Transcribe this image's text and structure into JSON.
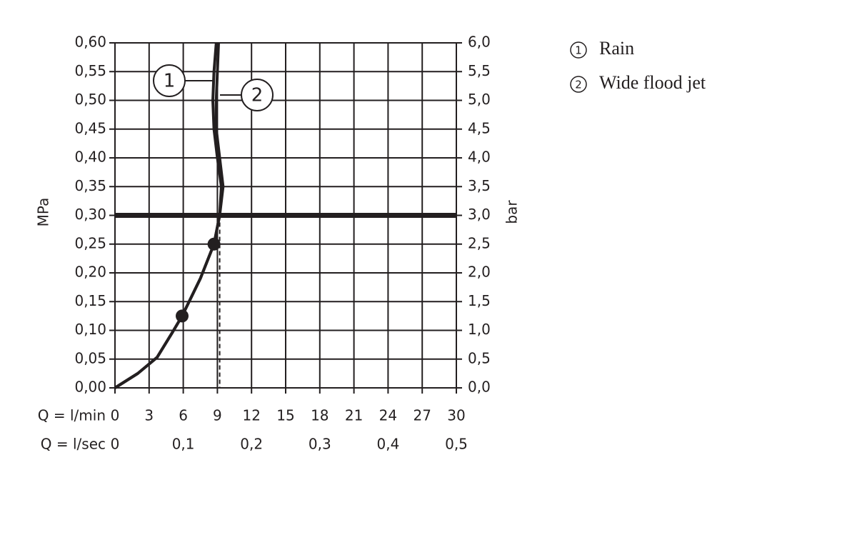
{
  "chart_data": {
    "type": "line",
    "xlabel": "Q = l/min",
    "x2label": "Q = l/sec",
    "ylabel": "MPa",
    "y2label": "bar",
    "xlim": [
      0,
      30
    ],
    "xticks": [
      0,
      3,
      6,
      9,
      12,
      15,
      18,
      21,
      24,
      27,
      30
    ],
    "x2lim": [
      0,
      0.5
    ],
    "x2ticks": [
      0,
      {
        "value": 0.1,
        "label": "0,1"
      },
      {
        "value": 0.2,
        "label": "0,2"
      },
      {
        "value": 0.3,
        "label": "0,3"
      },
      {
        "value": 0.4,
        "label": "0,4"
      },
      {
        "value": 0.5,
        "label": "0,5"
      }
    ],
    "ylim": [
      0,
      0.6
    ],
    "yticks": [
      {
        "value": 0,
        "label": "0,00"
      },
      {
        "value": 0.05,
        "label": "0,05"
      },
      {
        "value": 0.1,
        "label": "0,10"
      },
      {
        "value": 0.15,
        "label": "0,15"
      },
      {
        "value": 0.2,
        "label": "0,20"
      },
      {
        "value": 0.25,
        "label": "0,25"
      },
      {
        "value": 0.3,
        "label": "0,30"
      },
      {
        "value": 0.35,
        "label": "0,35"
      },
      {
        "value": 0.4,
        "label": "0,40"
      },
      {
        "value": 0.45,
        "label": "0,45"
      },
      {
        "value": 0.5,
        "label": "0,50"
      },
      {
        "value": 0.55,
        "label": "0,55"
      },
      {
        "value": 0.6,
        "label": "0,60"
      }
    ],
    "y2lim": [
      0,
      6
    ],
    "y2ticks": [
      {
        "value": 0,
        "label": "0,0"
      },
      {
        "value": 0.5,
        "label": "0,5"
      },
      {
        "value": 1,
        "label": "1,0"
      },
      {
        "value": 1.5,
        "label": "1,5"
      },
      {
        "value": 2,
        "label": "2,0"
      },
      {
        "value": 2.5,
        "label": "2,5"
      },
      {
        "value": 3,
        "label": "3,0"
      },
      {
        "value": 3.5,
        "label": "3,5"
      },
      {
        "value": 4,
        "label": "4,0"
      },
      {
        "value": 4.5,
        "label": "4,5"
      },
      {
        "value": 5,
        "label": "5,0"
      },
      {
        "value": 5.5,
        "label": "5,5"
      },
      {
        "value": 6,
        "label": "6,0"
      }
    ],
    "grid": true,
    "series": [
      {
        "name": "Rain",
        "label": "1",
        "color": "#231f20",
        "x": [
          0,
          2,
          3.7,
          5,
          5.9,
          7.5,
          8.7,
          9.2,
          9.35,
          9.0,
          8.7,
          8.6,
          8.7,
          8.9
        ],
        "values": [
          0,
          0.025,
          0.053,
          0.095,
          0.125,
          0.19,
          0.25,
          0.3,
          0.35,
          0.4,
          0.45,
          0.5,
          0.55,
          0.6
        ]
      },
      {
        "name": "Wide flood jet",
        "label": "2",
        "color": "#231f20",
        "x": [
          0,
          2,
          3.7,
          5,
          5.9,
          7.5,
          8.7,
          9.2,
          9.5,
          9.2,
          8.9,
          8.9,
          9.0,
          9.1
        ],
        "values": [
          0,
          0.025,
          0.053,
          0.095,
          0.125,
          0.19,
          0.25,
          0.3,
          0.35,
          0.4,
          0.45,
          0.5,
          0.55,
          0.6
        ]
      }
    ],
    "points": {
      "x": [
        5.9,
        8.7
      ],
      "values": [
        0.125,
        0.25
      ]
    },
    "reference_y": 0.3,
    "reference_x": 9.2
  }
}
